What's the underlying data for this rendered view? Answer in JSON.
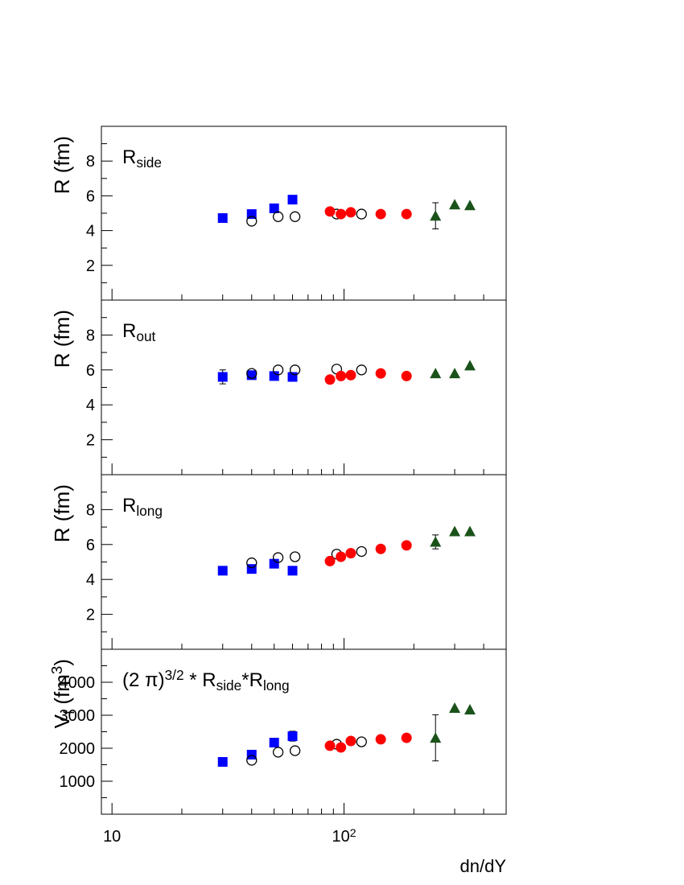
{
  "chart_data": [
    {
      "type": "scatter",
      "xlog": true,
      "xlim": [
        9,
        500
      ],
      "xticks": [
        10,
        {
          "value": 100,
          "label": "10",
          "label_sup": "2"
        }
      ],
      "xminorticks": [
        20,
        30,
        40,
        50,
        60,
        70,
        80,
        90,
        200,
        300,
        400
      ],
      "ylim": [
        0,
        10
      ],
      "yticks": [
        2,
        4,
        6,
        8
      ],
      "yminorticks": [
        1,
        3,
        5,
        7,
        9
      ],
      "ylabel": [
        {
          "text": "R (fm)"
        }
      ],
      "annotation": [
        {
          "text": "R"
        },
        {
          "text": "side",
          "shift": "sub"
        }
      ],
      "series": [
        {
          "marker": "square",
          "color": "#0000ff",
          "x": [
            30,
            40,
            50,
            60
          ],
          "values": [
            4.72,
            4.95,
            5.28,
            5.78
          ]
        },
        {
          "marker": "circle-open",
          "color": "#000000",
          "x": [
            40,
            52,
            61.5,
            93,
            119
          ],
          "values": [
            4.54,
            4.8,
            4.8,
            4.95,
            4.95
          ]
        },
        {
          "marker": "circle",
          "color": "#ff0000",
          "x": [
            87,
            97,
            107,
            144,
            186
          ],
          "values": [
            5.1,
            4.95,
            5.05,
            4.95,
            4.95
          ]
        },
        {
          "marker": "triangle",
          "color": "#1a531a",
          "x": [
            248,
            300,
            349
          ],
          "values": [
            4.85,
            5.5,
            5.45
          ],
          "errors": [
            0.75,
            null,
            null
          ]
        }
      ]
    },
    {
      "type": "scatter",
      "xlog": true,
      "xlim": [
        9,
        500
      ],
      "xticks": [
        10,
        {
          "value": 100,
          "label": "10",
          "label_sup": "2"
        }
      ],
      "xminorticks": [
        20,
        30,
        40,
        50,
        60,
        70,
        80,
        90,
        200,
        300,
        400
      ],
      "ylim": [
        0,
        10
      ],
      "yticks": [
        2,
        4,
        6,
        8
      ],
      "yminorticks": [
        1,
        3,
        5,
        7,
        9
      ],
      "ylabel": [
        {
          "text": "R (fm)"
        }
      ],
      "annotation": [
        {
          "text": "R"
        },
        {
          "text": "out",
          "shift": "sub"
        }
      ],
      "series": [
        {
          "marker": "square",
          "color": "#0000ff",
          "x": [
            30,
            40,
            50,
            60
          ],
          "values": [
            5.6,
            5.7,
            5.65,
            5.6
          ],
          "errors": [
            0.4,
            null,
            null,
            null
          ]
        },
        {
          "marker": "circle-open",
          "color": "#000000",
          "x": [
            40,
            52,
            61.5,
            93,
            119
          ],
          "values": [
            5.8,
            6.0,
            6.0,
            6.05,
            6.0
          ]
        },
        {
          "marker": "circle",
          "color": "#ff0000",
          "x": [
            87,
            97,
            107,
            144,
            186
          ],
          "values": [
            5.45,
            5.65,
            5.7,
            5.8,
            5.65
          ]
        },
        {
          "marker": "triangle",
          "color": "#1a531a",
          "x": [
            248,
            300,
            349
          ],
          "values": [
            5.8,
            5.8,
            6.25
          ]
        }
      ]
    },
    {
      "type": "scatter",
      "xlog": true,
      "xlim": [
        9,
        500
      ],
      "xticks": [
        10,
        {
          "value": 100,
          "label": "10",
          "label_sup": "2"
        }
      ],
      "xminorticks": [
        20,
        30,
        40,
        50,
        60,
        70,
        80,
        90,
        200,
        300,
        400
      ],
      "ylim": [
        0,
        10
      ],
      "yticks": [
        2,
        4,
        6,
        8
      ],
      "yminorticks": [
        1,
        3,
        5,
        7,
        9
      ],
      "ylabel": [
        {
          "text": "R (fm)"
        }
      ],
      "annotation": [
        {
          "text": "R"
        },
        {
          "text": "long",
          "shift": "sub"
        }
      ],
      "series": [
        {
          "marker": "square",
          "color": "#0000ff",
          "x": [
            30,
            40,
            50,
            60
          ],
          "values": [
            4.5,
            4.6,
            4.9,
            4.5
          ]
        },
        {
          "marker": "circle-open",
          "color": "#000000",
          "x": [
            40,
            52,
            61.5,
            93,
            119
          ],
          "values": [
            4.95,
            5.25,
            5.3,
            5.45,
            5.6
          ]
        },
        {
          "marker": "circle",
          "color": "#ff0000",
          "x": [
            87,
            97,
            107,
            144,
            186
          ],
          "values": [
            5.05,
            5.3,
            5.5,
            5.75,
            5.95
          ]
        },
        {
          "marker": "triangle",
          "color": "#1a531a",
          "x": [
            248,
            300,
            349
          ],
          "values": [
            6.15,
            6.75,
            6.75
          ],
          "errors": [
            0.4,
            null,
            null
          ]
        }
      ]
    },
    {
      "type": "scatter",
      "xlog": true,
      "xlim": [
        9,
        500
      ],
      "xticks": [
        10,
        {
          "value": 100,
          "label": "10",
          "label_sup": "2"
        }
      ],
      "xminorticks": [
        20,
        30,
        40,
        50,
        60,
        70,
        80,
        90,
        200,
        300,
        400
      ],
      "xlabel": "dn/dY",
      "ylim": [
        0,
        5000
      ],
      "yticks": [
        1000,
        2000,
        3000,
        4000
      ],
      "yminorticks": [
        500,
        1500,
        2500,
        3500,
        4500
      ],
      "ylabel": [
        {
          "text": "V"
        },
        {
          "text": "f",
          "shift": "sub"
        },
        {
          "text": " (fm"
        },
        {
          "text": "3",
          "shift": "sup"
        },
        {
          "text": ")"
        }
      ],
      "annotation": [
        {
          "text": "(2 π)"
        },
        {
          "text": "3/2",
          "shift": "sup"
        },
        {
          "text": " * R"
        },
        {
          "text": "side",
          "shift": "sub"
        },
        {
          "text": "*R"
        },
        {
          "text": "long",
          "shift": "sub"
        }
      ],
      "series": [
        {
          "marker": "square",
          "color": "#0000ff",
          "x": [
            30,
            40,
            50,
            60
          ],
          "values": [
            1585,
            1805,
            2170,
            2365
          ],
          "errors": [
            null,
            null,
            null,
            150
          ]
        },
        {
          "marker": "circle-open",
          "color": "#000000",
          "x": [
            40,
            52,
            61.5,
            93,
            119
          ],
          "values": [
            1635,
            1880,
            1925,
            2120,
            2195
          ]
        },
        {
          "marker": "circle",
          "color": "#ff0000",
          "x": [
            87,
            97,
            107,
            144,
            186
          ],
          "values": [
            2075,
            2025,
            2220,
            2270,
            2315
          ]
        },
        {
          "marker": "triangle",
          "color": "#1a531a",
          "x": [
            248,
            300,
            349
          ],
          "values": [
            2315,
            3220,
            3170
          ],
          "errors": [
            700,
            null,
            null
          ]
        }
      ]
    }
  ]
}
